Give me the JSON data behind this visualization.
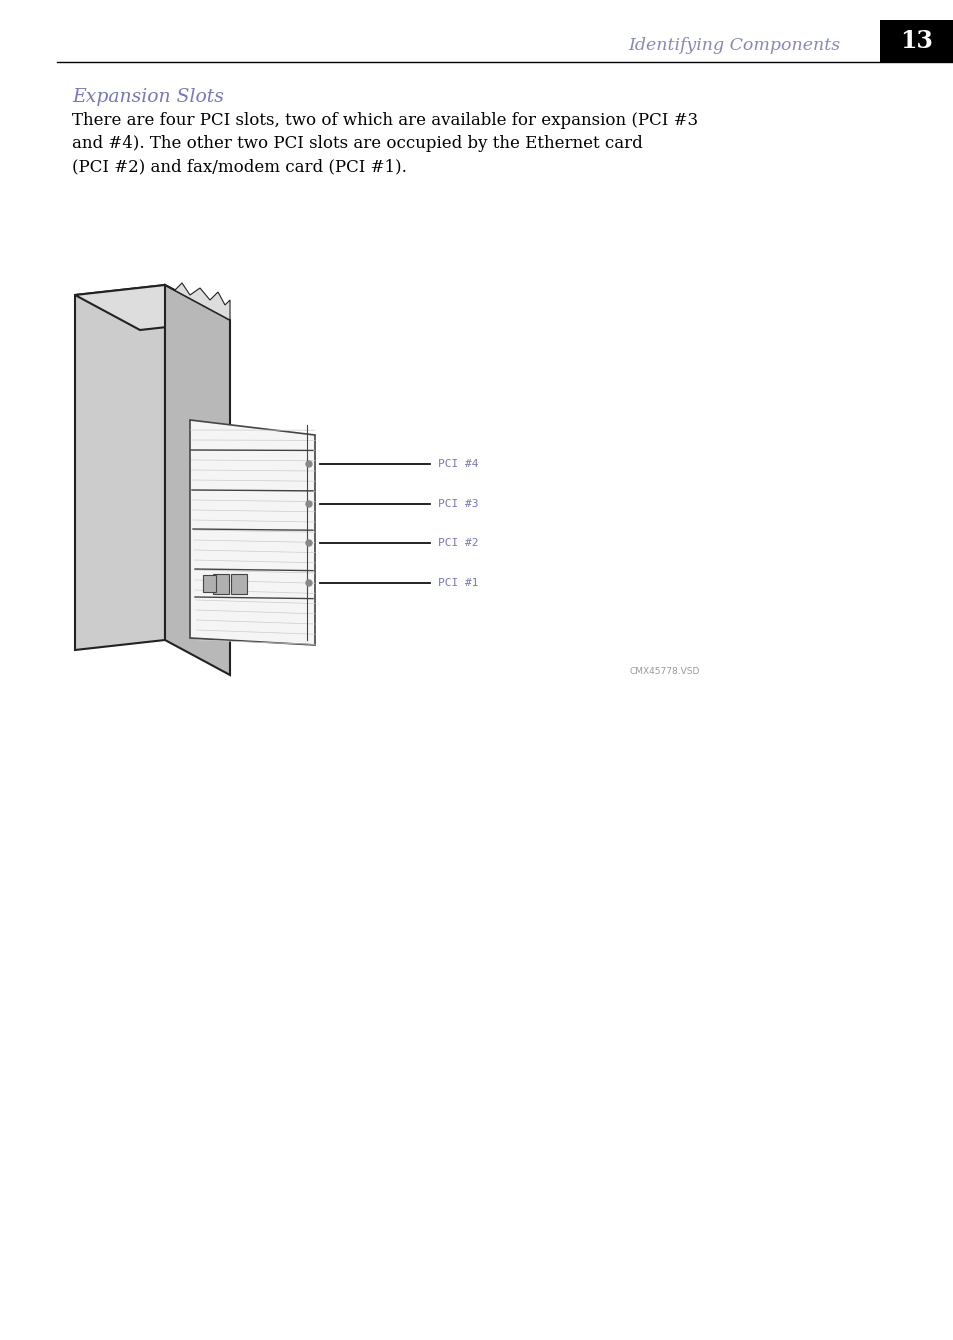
{
  "page_bg": "#ffffff",
  "header_line_color": "#000000",
  "header_text": "Identifying Components",
  "header_text_color": "#8888bb",
  "page_number": "13",
  "page_num_bg": "#000000",
  "page_num_color": "#ffffff",
  "section_title": "Expansion Slots",
  "section_title_color": "#7777bb",
  "body_text_line1": "There are four PCI slots, two of which are available for expansion (PCI #3",
  "body_text_line2": "and #4). The other two PCI slots are occupied by the Ethernet card",
  "body_text_line3": "(PCI #2) and fax/modem card (PCI #1).",
  "body_text_color": "#000000",
  "label_color": "#7777bb",
  "pci_labels": [
    "PCI #4",
    "PCI #3",
    "PCI #2",
    "PCI #1"
  ],
  "callout_code": "CMX45778.VSD",
  "callout_color": "#999999",
  "tower_gray": "#cccccc",
  "tower_gray_dark": "#aaaaaa",
  "tower_edge": "#222222",
  "slots_bg": "#f5f5f5",
  "slot_line": "#555555",
  "connector_gray": "#aaaaaa"
}
